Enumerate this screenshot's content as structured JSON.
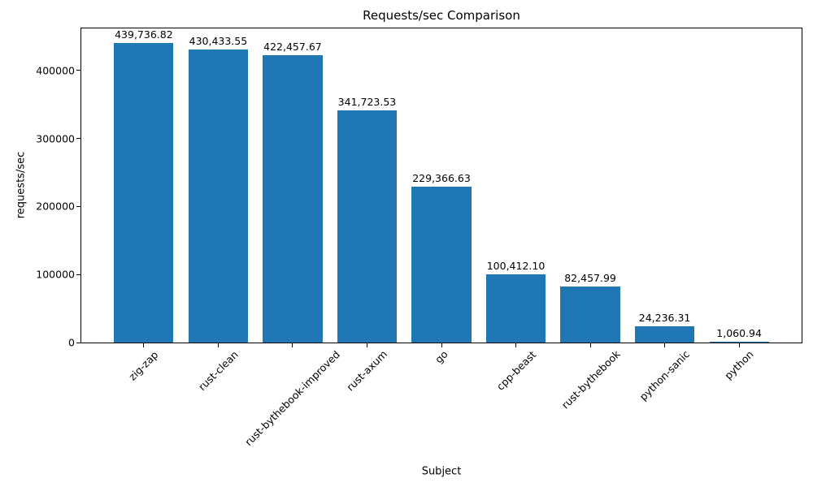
{
  "chart_data": {
    "type": "bar",
    "title": "Requests/sec Comparison",
    "xlabel": "Subject",
    "ylabel": "requests/sec",
    "categories": [
      "zig-zap",
      "rust-clean",
      "rust-bythebook-improved",
      "rust-axum",
      "go",
      "cpp-beast",
      "rust-bythebook",
      "python-sanic",
      "python"
    ],
    "values": [
      439736.82,
      430433.55,
      422457.67,
      341723.53,
      229366.63,
      100412.1,
      82457.99,
      24236.31,
      1060.94
    ],
    "value_labels": [
      "439,736.82",
      "430,433.55",
      "422,457.67",
      "341,723.53",
      "229,366.63",
      "100,412.10",
      "82,457.99",
      "24,236.31",
      "1,060.94"
    ],
    "yticks": [
      0,
      100000,
      200000,
      300000,
      400000
    ],
    "ytick_labels": [
      "0",
      "100000",
      "200000",
      "300000",
      "400000"
    ],
    "ylim": [
      0,
      461723.66
    ],
    "bar_color": "#1f77b4",
    "text_color": "#000000",
    "bar_width_frac": 0.8,
    "xtick_rotation": 45,
    "grid": false,
    "legend": null
  }
}
